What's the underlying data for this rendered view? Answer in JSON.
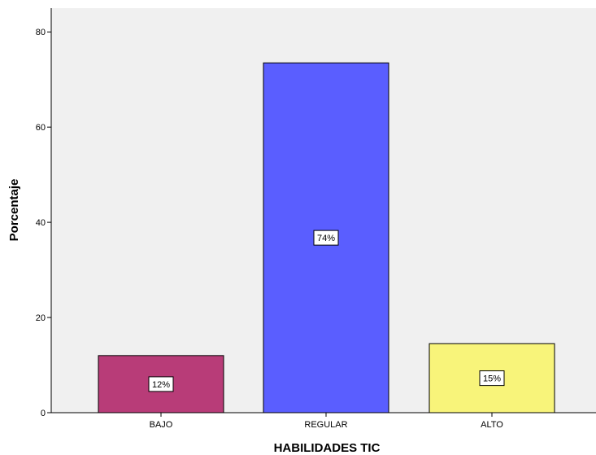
{
  "chart_data": {
    "type": "bar",
    "title": "",
    "xlabel": "HABILIDADES  TIC",
    "ylabel": "Porcentaje",
    "categories": [
      "BAJO",
      "REGULAR",
      "ALTO"
    ],
    "values": [
      12.0,
      73.5,
      14.5
    ],
    "data_labels": [
      "12%",
      "74%",
      "15%"
    ],
    "colors": [
      "#b83c78",
      "#5a5eff",
      "#f8f47a"
    ],
    "ylim": [
      0,
      85
    ],
    "yticks": [
      0,
      20,
      40,
      60,
      80
    ],
    "plot_background": "#f0f0f0",
    "grid": false,
    "legend": "none"
  }
}
